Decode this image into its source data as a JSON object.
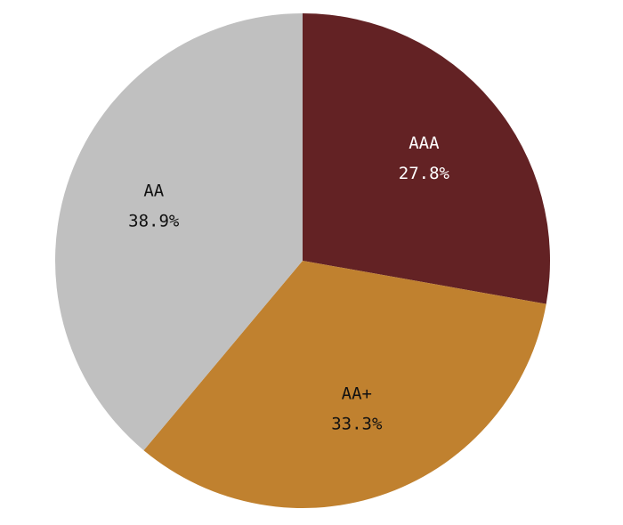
{
  "chart_data": {
    "type": "pie",
    "categories": [
      "AAA",
      "AA+",
      "AA"
    ],
    "values": [
      27.8,
      33.3,
      38.9
    ],
    "value_labels": [
      "27.8%",
      "33.3%",
      "38.9%"
    ],
    "colors": [
      "#632224",
      "#c0812f",
      "#c0c0c0"
    ]
  }
}
